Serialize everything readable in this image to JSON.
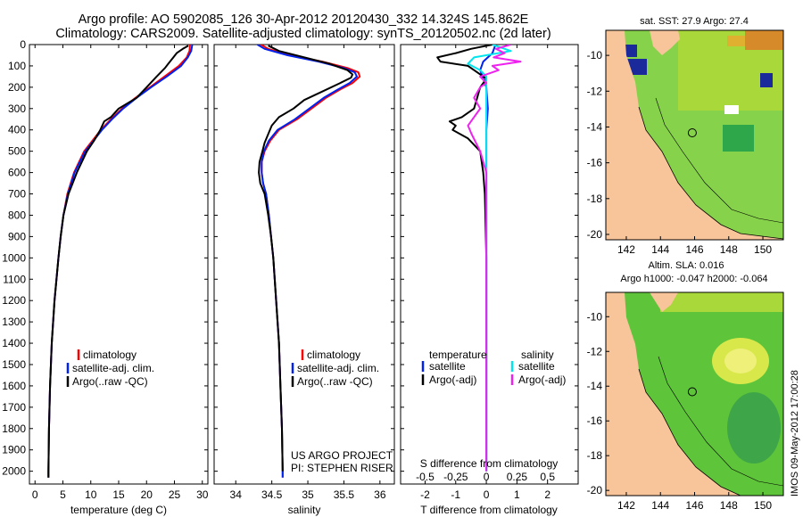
{
  "header": {
    "line1": "Argo profile: AO 5902085_126 30-Apr-2012 20120430_332 14.324S 145.862E",
    "line2": "Climatology: CARS2009. Satellite-adjusted climatology: synTS_20120502.nc (2d later)"
  },
  "footer": {
    "project": "US ARGO PROJECT",
    "pi": "PI: STEPHEN RISER",
    "stamp": "IMOS 09-May-2012 17:00:28"
  },
  "colors": {
    "climatology": "#ff0000",
    "satellite": "#0022ee",
    "argo": "#000000",
    "salinity_satellite": "#00e5ee",
    "salinity_argo": "#ee22ee",
    "land": "#f8c49a",
    "map_sea": "#86d24a"
  },
  "chart_data": [
    {
      "type": "line",
      "xlabel": "temperature (deg C)",
      "ylabel": "",
      "xlim": [
        -1,
        31
      ],
      "ylim": [
        2060,
        0
      ],
      "xticks": [
        0,
        5,
        10,
        15,
        20,
        25,
        30
      ],
      "yticks": [
        0,
        100,
        200,
        300,
        400,
        500,
        600,
        700,
        800,
        900,
        1000,
        1100,
        1200,
        1300,
        1400,
        1500,
        1600,
        1700,
        1800,
        1900,
        2000
      ],
      "legend": [
        "climatology",
        "satellite-adj. clim.",
        "Argo(..raw -QC)"
      ],
      "legend_position": "lower-center",
      "series": [
        {
          "name": "climatology",
          "y": [
            0,
            30,
            60,
            100,
            150,
            200,
            250,
            300,
            350,
            400,
            500,
            600,
            700,
            800,
            900,
            1000,
            1200,
            1400,
            1600,
            1800,
            2000,
            2030
          ],
          "x": [
            27.8,
            27.7,
            27.2,
            25.8,
            23.2,
            20.6,
            18.0,
            15.6,
            13.6,
            11.8,
            8.8,
            7.0,
            5.8,
            5.1,
            4.6,
            4.2,
            3.5,
            3.0,
            2.7,
            2.5,
            2.4,
            2.4
          ]
        },
        {
          "name": "satellite-adj. clim.",
          "y": [
            0,
            30,
            60,
            100,
            150,
            200,
            250,
            300,
            350,
            400,
            500,
            600,
            700,
            800,
            900,
            1000,
            1200,
            1400,
            1600,
            1800,
            2000,
            2030
          ],
          "x": [
            28.2,
            28.0,
            27.4,
            26.2,
            23.6,
            20.8,
            18.2,
            15.8,
            13.8,
            12.0,
            9.0,
            7.1,
            5.9,
            5.1,
            4.6,
            4.2,
            3.5,
            3.0,
            2.7,
            2.5,
            2.4,
            2.4
          ]
        },
        {
          "name": "Argo(..raw -QC)",
          "y": [
            5,
            20,
            40,
            60,
            90,
            110,
            150,
            200,
            250,
            300,
            340,
            360,
            400,
            450,
            500,
            600,
            700,
            800,
            900,
            1000,
            1200,
            1400,
            1600,
            1800,
            2000,
            2030
          ],
          "x": [
            27.5,
            26.5,
            25.4,
            24.8,
            23.9,
            23.3,
            21.8,
            20.0,
            18.2,
            15.0,
            13.6,
            12.4,
            11.7,
            10.6,
            9.3,
            7.5,
            6.0,
            5.1,
            4.6,
            4.2,
            3.5,
            3.0,
            2.7,
            2.5,
            2.4,
            2.4
          ]
        }
      ]
    },
    {
      "type": "line",
      "xlabel": "salinity",
      "xlim": [
        33.7,
        36.2
      ],
      "ylim": [
        2060,
        0
      ],
      "xticks": [
        34,
        34.5,
        35,
        35.5,
        36
      ],
      "legend": [
        "climatology",
        "satellite-adj. clim.",
        "Argo(..raw -QC)"
      ],
      "legend_position": "lower-right",
      "series": [
        {
          "name": "climatology",
          "y": [
            0,
            20,
            50,
            80,
            110,
            130,
            150,
            180,
            210,
            250,
            300,
            350,
            400,
            450,
            500,
            550,
            600,
            650,
            700,
            800,
            900,
            1000,
            1200,
            1400,
            1600,
            1800,
            2000,
            2030
          ],
          "x": [
            34.35,
            34.45,
            34.75,
            35.2,
            35.55,
            35.7,
            35.72,
            35.62,
            35.45,
            35.25,
            35.05,
            34.85,
            34.6,
            34.48,
            34.4,
            34.36,
            34.36,
            34.38,
            34.42,
            34.46,
            34.49,
            34.52,
            34.56,
            34.6,
            34.62,
            34.64,
            34.65,
            34.65
          ]
        },
        {
          "name": "satellite-adj. clim.",
          "y": [
            0,
            20,
            50,
            80,
            110,
            130,
            150,
            180,
            210,
            250,
            300,
            350,
            400,
            450,
            500,
            550,
            600,
            650,
            700,
            800,
            900,
            1000,
            1200,
            1400,
            1600,
            1800,
            2000,
            2030
          ],
          "x": [
            34.3,
            34.4,
            34.72,
            35.15,
            35.5,
            35.65,
            35.68,
            35.58,
            35.42,
            35.22,
            35.02,
            34.82,
            34.58,
            34.46,
            34.39,
            34.36,
            34.36,
            34.38,
            34.42,
            34.46,
            34.49,
            34.52,
            34.56,
            34.6,
            34.62,
            34.64,
            34.65,
            34.65
          ]
        },
        {
          "name": "Argo(..raw -QC)",
          "y": [
            5,
            30,
            60,
            90,
            120,
            140,
            155,
            180,
            220,
            260,
            300,
            340,
            380,
            420,
            460,
            500,
            550,
            600,
            650,
            700,
            800,
            900,
            1000,
            1200,
            1400,
            1600,
            1800,
            2000
          ],
          "x": [
            34.45,
            34.6,
            34.95,
            35.3,
            35.55,
            35.62,
            35.6,
            35.45,
            35.2,
            34.95,
            34.8,
            34.6,
            34.5,
            34.45,
            34.4,
            34.37,
            34.33,
            34.32,
            34.34,
            34.4,
            34.45,
            34.49,
            34.52,
            34.56,
            34.6,
            34.62,
            34.64,
            34.65
          ]
        }
      ]
    },
    {
      "type": "line",
      "xlabel": "T difference from climatology",
      "xlabel2": "S difference from climatology",
      "xlim": [
        -2.8,
        3.0
      ],
      "xlim_salinity": [
        -0.7,
        0.75
      ],
      "ylim": [
        2060,
        0
      ],
      "xticks": [
        -2,
        -1,
        0,
        1,
        2
      ],
      "xticks_salinity": [
        -0.5,
        -0.25,
        0,
        0.25,
        0.5
      ],
      "xticklabels_salinity": [
        "-0.5",
        "-0.25",
        "0",
        "0.25",
        "0.5"
      ],
      "legend": {
        "temperature_title": "temperature",
        "salinity_title": "salinity",
        "temperature_items": [
          "satellite",
          "Argo(-adj)"
        ],
        "salinity_items": [
          "satellite",
          "Argo(-adj)"
        ]
      },
      "legend_position": "lower-center",
      "series": [
        {
          "name": "temperature satellite",
          "y": [
            0,
            40,
            80,
            120,
            160,
            200,
            300,
            400,
            500,
            700,
            1000,
            1500,
            2000
          ],
          "x": [
            0.3,
            0.2,
            -0.1,
            -0.2,
            -0.1,
            0.0,
            0.05,
            0.0,
            0.0,
            0.0,
            0.0,
            0.0,
            0.0
          ]
        },
        {
          "name": "temperature Argo(-adj)",
          "y": [
            0,
            20,
            40,
            60,
            80,
            100,
            130,
            160,
            200,
            250,
            300,
            340,
            360,
            380,
            400,
            440,
            500,
            600,
            700,
            800,
            1000,
            1500,
            2000
          ],
          "x": [
            0.2,
            -0.5,
            -1.0,
            -1.6,
            -1.5,
            -0.6,
            -0.3,
            0.0,
            -0.2,
            -0.3,
            -0.4,
            -0.8,
            -1.2,
            -1.0,
            -1.1,
            -0.6,
            -0.2,
            -0.1,
            -0.05,
            -0.03,
            0.0,
            0.0,
            0.0
          ]
        },
        {
          "name": "salinity satellite",
          "y": [
            0,
            30,
            60,
            90,
            120,
            150,
            200,
            300,
            400,
            500,
            700,
            1000,
            1500,
            2000
          ],
          "x": [
            0.05,
            0.2,
            -0.1,
            -0.15,
            -0.05,
            0.0,
            0.0,
            0.0,
            0.0,
            0.0,
            0.0,
            0.0,
            0.0,
            0.0
          ]
        },
        {
          "name": "salinity Argo(-adj)",
          "y": [
            0,
            20,
            40,
            60,
            80,
            100,
            120,
            150,
            180,
            200,
            250,
            300,
            340,
            380,
            420,
            500,
            600,
            800,
            1000,
            1500,
            2000
          ],
          "x": [
            0.2,
            0.08,
            0.15,
            0.06,
            0.28,
            0.05,
            0.1,
            -0.05,
            0.0,
            -0.05,
            -0.1,
            -0.05,
            -0.1,
            -0.15,
            -0.12,
            -0.05,
            0.0,
            0.0,
            0.0,
            0.0,
            0.0
          ]
        }
      ]
    },
    {
      "type": "heatmap",
      "title": "sat. SST: 27.9 Argo: 27.4",
      "xlim": [
        140.8,
        151.2
      ],
      "ylim": [
        -20.3,
        -8.6
      ],
      "xticks": [
        142,
        144,
        146,
        148,
        150
      ],
      "yticks": [
        -10,
        -12,
        -14,
        -16,
        -18,
        -20
      ],
      "marker": {
        "lon": 145.862,
        "lat": -14.324
      }
    },
    {
      "type": "heatmap",
      "title": "Altim. SLA: 0.016",
      "subtitle": "Argo h1000: -0.047 h2000: -0.064",
      "xlim": [
        140.8,
        151.2
      ],
      "ylim": [
        -20.3,
        -8.6
      ],
      "xticks": [
        142,
        144,
        146,
        148,
        150
      ],
      "yticks": [
        -10,
        -12,
        -14,
        -16,
        -18,
        -20
      ],
      "marker": {
        "lon": 145.862,
        "lat": -14.324
      }
    }
  ]
}
